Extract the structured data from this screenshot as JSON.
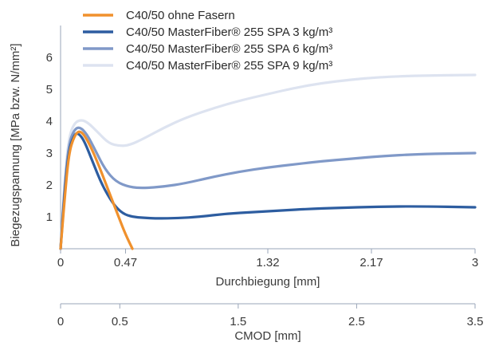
{
  "chart_data": {
    "type": "line",
    "xlabel": "Durchbiegung [mm]",
    "ylabel": "Biegezugspannung [MPa bzw. N/mm²]",
    "x_ticks": [
      "0",
      "0.47",
      "1.32",
      "2.17",
      "3"
    ],
    "y_ticks": [
      "1",
      "2",
      "3",
      "4",
      "5",
      "6"
    ],
    "xlim": [
      0,
      3
    ],
    "ylim": [
      0,
      7
    ],
    "secondary_axis": {
      "label": "CMOD [mm]",
      "ticks": [
        "0",
        "0.5",
        "1.5",
        "2.5",
        "3.5"
      ]
    },
    "legend_position": "top-left",
    "series": [
      {
        "name": "C40/50 ohne Fasern",
        "color": "#f0912d",
        "x": [
          0.0,
          0.03,
          0.06,
          0.1,
          0.14,
          0.19,
          0.26,
          0.34,
          0.42,
          0.47,
          0.52
        ],
        "y": [
          0.0,
          1.6,
          3.0,
          3.55,
          3.72,
          3.45,
          2.8,
          1.9,
          1.0,
          0.45,
          0.0
        ]
      },
      {
        "name": "C40/50 MasterFiber® 255 SPA 3 kg/m³",
        "color": "#2d5da0",
        "x": [
          0.0,
          0.03,
          0.06,
          0.1,
          0.13,
          0.17,
          0.23,
          0.3,
          0.38,
          0.45,
          0.52,
          0.6,
          0.7,
          0.85,
          1.0,
          1.2,
          1.4,
          1.6,
          1.8,
          2.0,
          2.3,
          2.6,
          3.0
        ],
        "y": [
          0.0,
          1.8,
          3.1,
          3.6,
          3.62,
          3.4,
          2.75,
          2.0,
          1.4,
          1.1,
          1.0,
          0.97,
          0.95,
          0.96,
          1.0,
          1.1,
          1.15,
          1.2,
          1.25,
          1.28,
          1.32,
          1.33,
          1.3
        ]
      },
      {
        "name": "C40/50 MasterFiber® 255 SPA 6 kg/m³",
        "color": "#8099c8",
        "x": [
          0.0,
          0.03,
          0.06,
          0.1,
          0.14,
          0.19,
          0.25,
          0.32,
          0.4,
          0.5,
          0.6,
          0.75,
          0.9,
          1.1,
          1.3,
          1.5,
          1.7,
          1.9,
          2.1,
          2.3,
          2.6,
          3.0
        ],
        "y": [
          0.0,
          2.0,
          3.3,
          3.75,
          3.82,
          3.6,
          3.1,
          2.5,
          2.1,
          1.93,
          1.9,
          1.95,
          2.05,
          2.25,
          2.42,
          2.55,
          2.65,
          2.75,
          2.82,
          2.9,
          2.97,
          3.0
        ]
      },
      {
        "name": "C40/50 MasterFiber® 255 SPA 9 kg/m³",
        "color": "#dde3f0",
        "x": [
          0.0,
          0.03,
          0.06,
          0.1,
          0.15,
          0.2,
          0.27,
          0.35,
          0.43,
          0.5,
          0.6,
          0.75,
          0.9,
          1.1,
          1.3,
          1.5,
          1.7,
          1.9,
          2.1,
          2.3,
          2.6,
          3.0
        ],
        "y": [
          0.0,
          2.2,
          3.5,
          3.95,
          4.05,
          3.95,
          3.65,
          3.3,
          3.22,
          3.25,
          3.45,
          3.8,
          4.1,
          4.4,
          4.65,
          4.85,
          5.05,
          5.2,
          5.3,
          5.38,
          5.43,
          5.45
        ]
      }
    ]
  }
}
